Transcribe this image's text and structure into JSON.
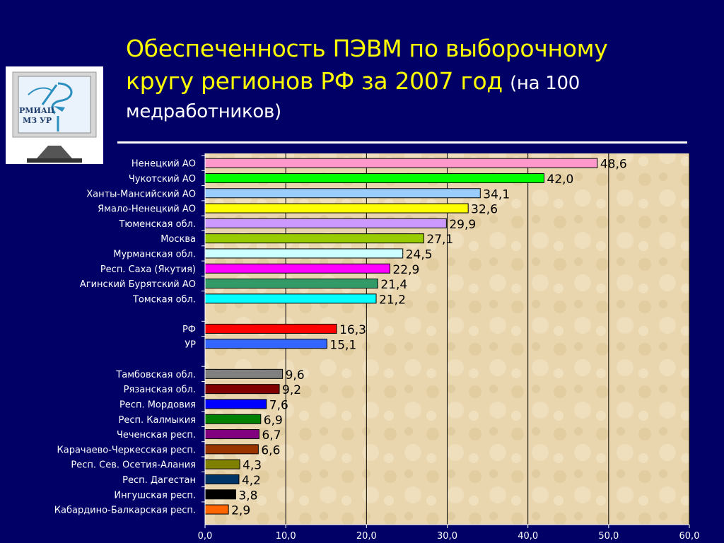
{
  "title": {
    "line1": "Обеспеченность ПЭВМ по выборочному",
    "line2": "кругу регионов РФ за 2007 год",
    "line2_note": "(на 100",
    "line3": "медработников)"
  },
  "logo": {
    "text_line1": "РМИАЦ",
    "text_line2": "МЗ УР"
  },
  "chart_data": {
    "type": "bar",
    "orientation": "horizontal",
    "xlim": [
      0,
      60
    ],
    "x_ticks": [
      "0,0",
      "10,0",
      "20,0",
      "30,0",
      "40,0",
      "50,0",
      "60,0"
    ],
    "grid": true,
    "groups": [
      {
        "bars": [
          {
            "label": "Ненецкий АО",
            "value": 48.6,
            "display": "48,6",
            "color": "#ff99cc"
          },
          {
            "label": "Чукотский АО",
            "value": 42.0,
            "display": "42,0",
            "color": "#00ff00"
          },
          {
            "label": "Ханты-Мансийский АО",
            "value": 34.1,
            "display": "34,1",
            "color": "#99ccff"
          },
          {
            "label": "Ямало-Ненецкий АО",
            "value": 32.6,
            "display": "32,6",
            "color": "#ffff00"
          },
          {
            "label": "Тюменская обл.",
            "value": 29.9,
            "display": "29,9",
            "color": "#cc99ff"
          },
          {
            "label": "Москва",
            "value": 27.1,
            "display": "27,1",
            "color": "#99cc00"
          },
          {
            "label": "Мурманская обл.",
            "value": 24.5,
            "display": "24,5",
            "color": "#ccffff"
          },
          {
            "label": "Респ. Саха (Якутия)",
            "value": 22.9,
            "display": "22,9",
            "color": "#ff00ff"
          },
          {
            "label": "Агинский Бурятский АО",
            "value": 21.4,
            "display": "21,4",
            "color": "#339966"
          },
          {
            "label": "Томская обл.",
            "value": 21.2,
            "display": "21,2",
            "color": "#00ffff"
          }
        ]
      },
      {
        "bars": [
          {
            "label": "РФ",
            "value": 16.3,
            "display": "16,3",
            "color": "#ff0000"
          },
          {
            "label": "УР",
            "value": 15.1,
            "display": "15,1",
            "color": "#3366ff"
          }
        ]
      },
      {
        "bars": [
          {
            "label": "Тамбовская обл.",
            "value": 9.6,
            "display": "9,6",
            "color": "#808080"
          },
          {
            "label": "Рязанская обл.",
            "value": 9.2,
            "display": "9,2",
            "color": "#800000"
          },
          {
            "label": "Респ. Мордовия",
            "value": 7.6,
            "display": "7,6",
            "color": "#0000ff"
          },
          {
            "label": "Респ. Калмыкия",
            "value": 6.9,
            "display": "6,9",
            "color": "#008000"
          },
          {
            "label": "Чеченская респ.",
            "value": 6.7,
            "display": "6,7",
            "color": "#800080"
          },
          {
            "label": "Карачаево-Черкесская респ.",
            "value": 6.6,
            "display": "6,6",
            "color": "#993300"
          },
          {
            "label": "Респ. Сев. Осетия-Алания",
            "value": 4.3,
            "display": "4,3",
            "color": "#808000"
          },
          {
            "label": "Респ. Дагестан",
            "value": 4.2,
            "display": "4,2",
            "color": "#003366"
          },
          {
            "label": "Ингушская респ.",
            "value": 3.8,
            "display": "3,8",
            "color": "#000000"
          },
          {
            "label": "Кабардино-Балкарская респ.",
            "value": 2.9,
            "display": "2,9",
            "color": "#ff6600"
          }
        ]
      }
    ]
  }
}
